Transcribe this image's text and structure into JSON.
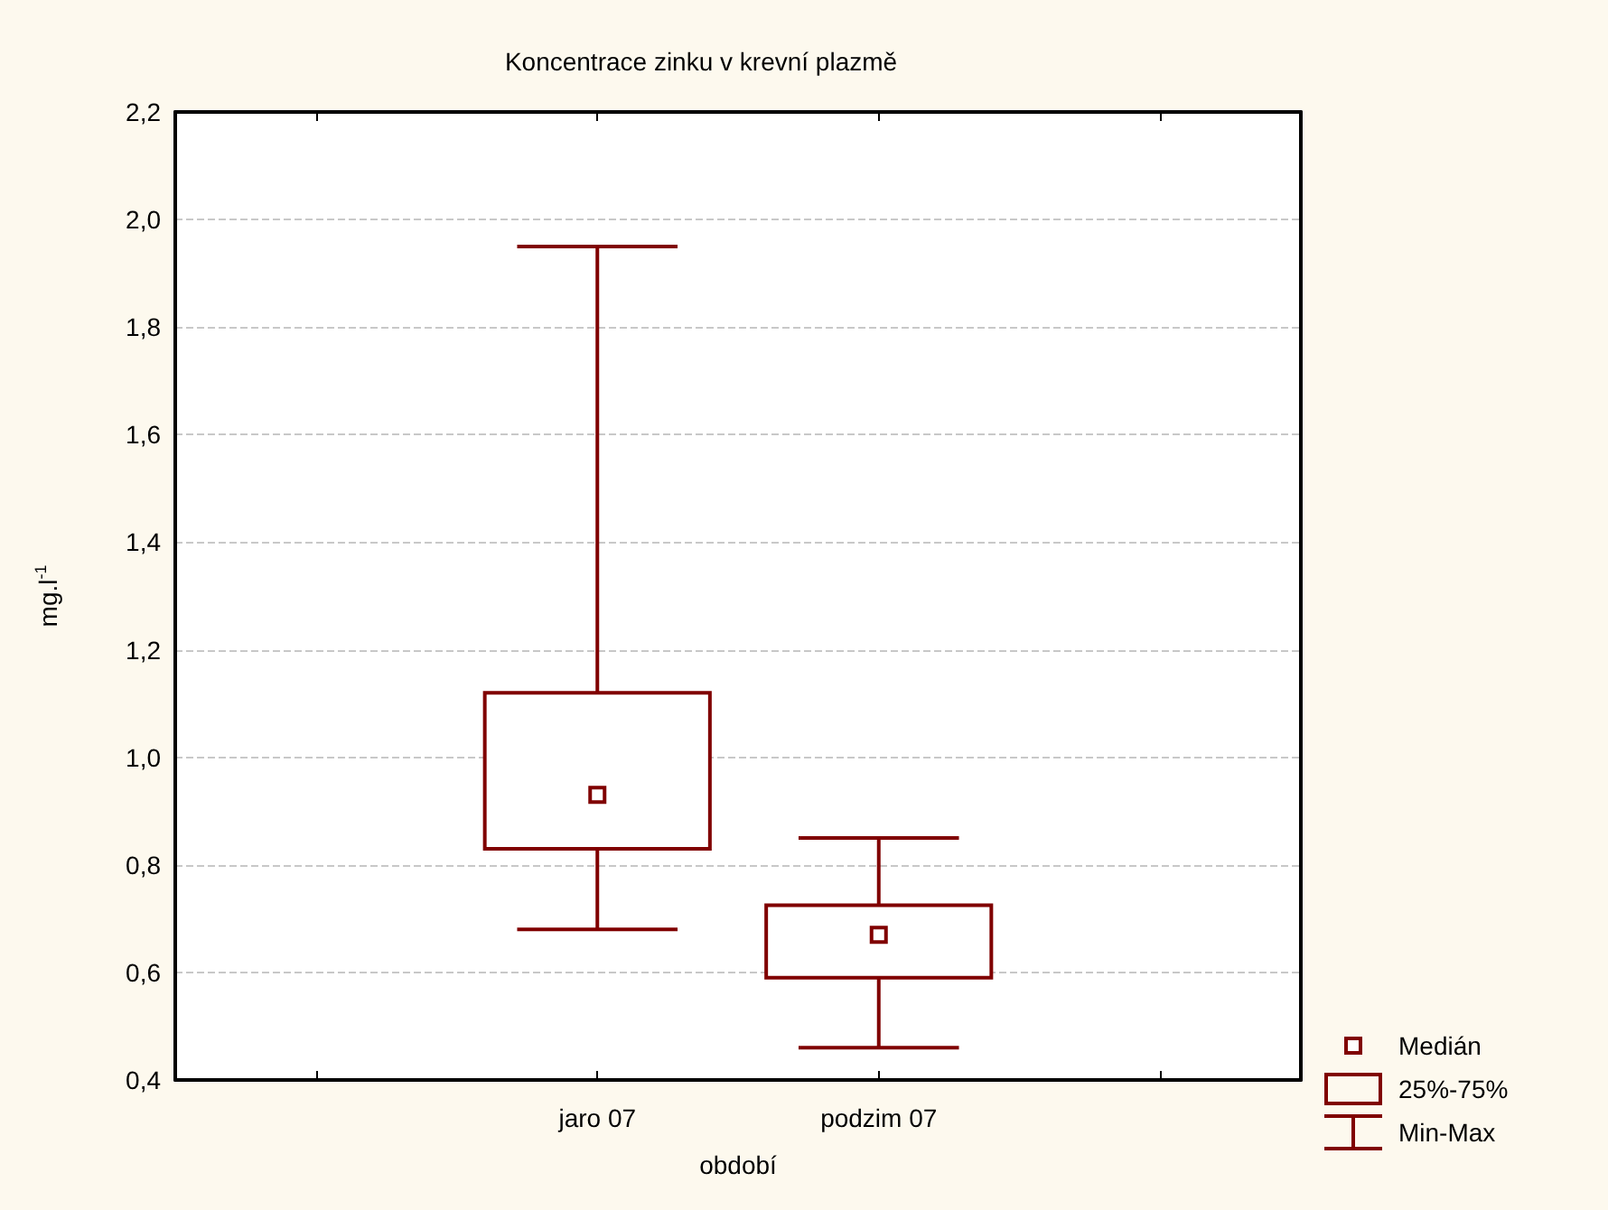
{
  "chart_data": {
    "type": "box",
    "title": "Koncentrace zinku v krevní plazmě",
    "xlabel": "období",
    "ylabel": "mg.l$^{-1}$",
    "categories": [
      null,
      "jaro 07",
      "podzim 07",
      null
    ],
    "boxes": [
      null,
      {
        "low": 0.68,
        "q1": 0.83,
        "median": 0.93,
        "q3": 1.12,
        "high": 1.95
      },
      {
        "low": 0.46,
        "q1": 0.59,
        "median": 0.67,
        "q3": 0.725,
        "high": 0.85
      },
      null
    ],
    "color": "#800000",
    "ylim": [
      0.4,
      2.2
    ],
    "yticks": [
      {
        "value": 0.4,
        "label": "0,4"
      },
      {
        "value": 0.6,
        "label": "0,6"
      },
      {
        "value": 0.8,
        "label": "0,8"
      },
      {
        "value": 1.0,
        "label": "1,0"
      },
      {
        "value": 1.2,
        "label": "1,2"
      },
      {
        "value": 1.4,
        "label": "1,4"
      },
      {
        "value": 1.6,
        "label": "1,6"
      },
      {
        "value": 1.8,
        "label": "1,8"
      },
      {
        "value": 2.0,
        "label": "2,0"
      },
      {
        "value": 2.2,
        "label": "2,2"
      }
    ],
    "grid": "y",
    "marker": "square",
    "annotations": [
      "Medián",
      "25%-75%",
      "Min-Max"
    ]
  }
}
